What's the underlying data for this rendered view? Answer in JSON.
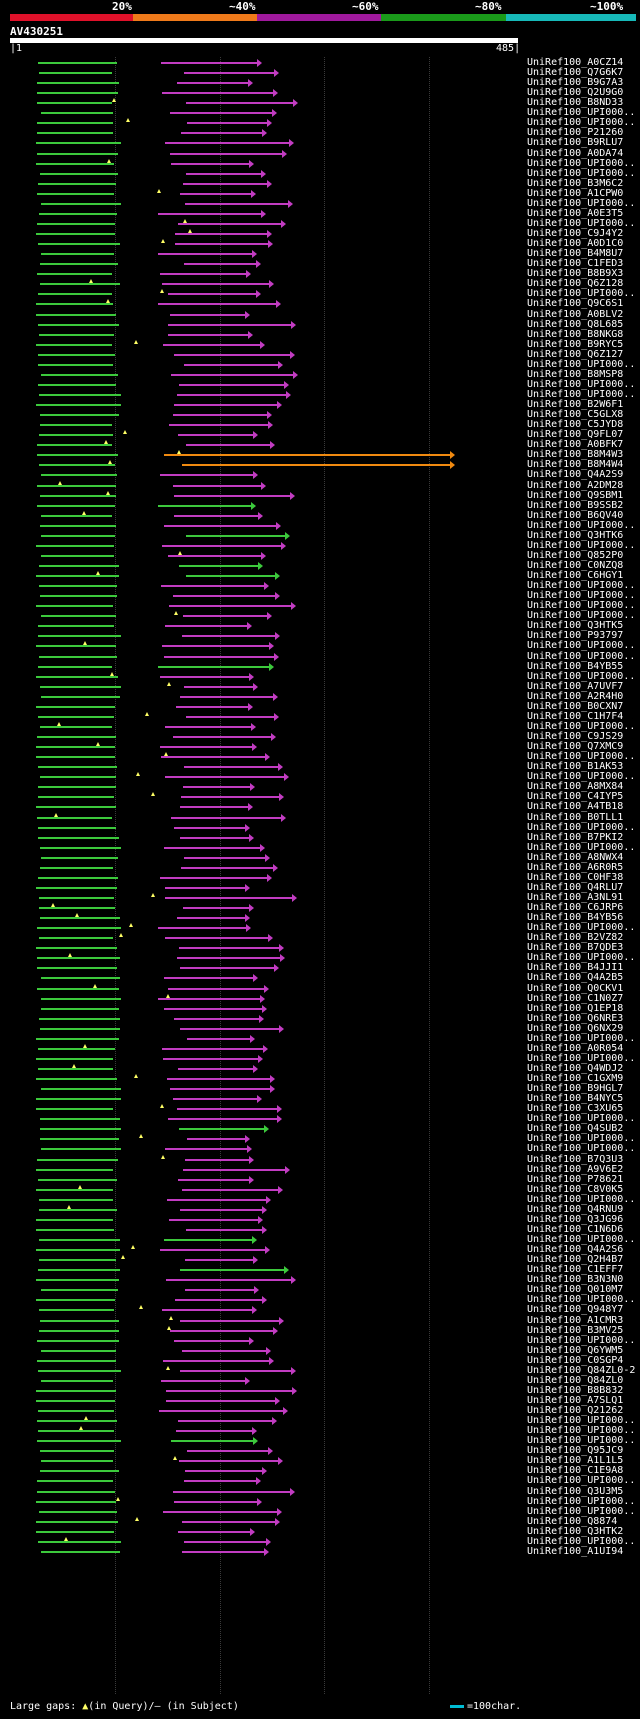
{
  "header": {
    "percent_labels": [
      "20%",
      "~40%",
      "~60%",
      "~80%",
      "~100%"
    ],
    "percent_colors": [
      "#e0112a",
      "#f07a1a",
      "#a0199d",
      "#1a9a1a",
      "#17b9b9"
    ]
  },
  "query": {
    "id": "AV430251",
    "start": "1",
    "end": "485",
    "length": 485
  },
  "colors": {
    "green": "#3cc93c",
    "magenta": "#c23cc2",
    "orange": "#f08a10",
    "gap_in_query": "#ffff66",
    "gap_in_subject": "#ffffff"
  },
  "hits": [
    {
      "label": "UniRef100_A0CZ14",
      "color": "magenta"
    },
    {
      "label": "UniRef100_Q7G6K7",
      "color": "magenta"
    },
    {
      "label": "UniRef100_B9G7A3",
      "color": "magenta"
    },
    {
      "label": "UniRef100_Q2U9G0",
      "color": "magenta"
    },
    {
      "label": "UniRef100_B8ND33",
      "color": "magenta"
    },
    {
      "label": "UniRef100_UPI000..",
      "color": "magenta"
    },
    {
      "label": "UniRef100_UPI000..",
      "color": "magenta"
    },
    {
      "label": "UniRef100_P21260",
      "color": "magenta"
    },
    {
      "label": "UniRef100_B9RLU7",
      "color": "magenta"
    },
    {
      "label": "UniRef100_A0DA74",
      "color": "magenta"
    },
    {
      "label": "UniRef100_UPI000..",
      "color": "magenta"
    },
    {
      "label": "UniRef100_UPI000..",
      "color": "magenta"
    },
    {
      "label": "UniRef100_B3M6C2",
      "color": "magenta"
    },
    {
      "label": "UniRef100_A1CPW0",
      "color": "magenta"
    },
    {
      "label": "UniRef100_UPI000..",
      "color": "magenta"
    },
    {
      "label": "UniRef100_A0E3T5",
      "color": "magenta"
    },
    {
      "label": "UniRef100_UPI000..",
      "color": "magenta"
    },
    {
      "label": "UniRef100_C9J4Y2",
      "color": "magenta"
    },
    {
      "label": "UniRef100_A0D1C0",
      "color": "magenta"
    },
    {
      "label": "UniRef100_B4M8U7",
      "color": "magenta"
    },
    {
      "label": "UniRef100_C1FED3",
      "color": "magenta"
    },
    {
      "label": "UniRef100_B8B9X3",
      "color": "magenta"
    },
    {
      "label": "UniRef100_Q6Z128",
      "color": "magenta"
    },
    {
      "label": "UniRef100_UPI000..",
      "color": "magenta"
    },
    {
      "label": "UniRef100_Q9C6S1",
      "color": "magenta"
    },
    {
      "label": "UniRef100_A0BLV2",
      "color": "magenta"
    },
    {
      "label": "UniRef100_Q8L685",
      "color": "magenta"
    },
    {
      "label": "UniRef100_B8NKG8",
      "color": "magenta"
    },
    {
      "label": "UniRef100_B9RYC5",
      "color": "magenta"
    },
    {
      "label": "UniRef100_Q6Z127",
      "color": "magenta"
    },
    {
      "label": "UniRef100_UPI000..",
      "color": "magenta"
    },
    {
      "label": "UniRef100_B8MSP8",
      "color": "magenta"
    },
    {
      "label": "UniRef100_UPI000..",
      "color": "magenta"
    },
    {
      "label": "UniRef100_UPI000..",
      "color": "magenta"
    },
    {
      "label": "UniRef100_B2W6F1",
      "color": "magenta"
    },
    {
      "label": "UniRef100_C5GLX8",
      "color": "magenta"
    },
    {
      "label": "UniRef100_C5JYD8",
      "color": "magenta"
    },
    {
      "label": "UniRef100_Q9FL07",
      "color": "magenta"
    },
    {
      "label": "UniRef100_A0BFK7",
      "color": "magenta"
    },
    {
      "label": "UniRef100_B8M4W3",
      "color": "orange"
    },
    {
      "label": "UniRef100_B8M4W4",
      "color": "orange"
    },
    {
      "label": "UniRef100_Q4A2S9",
      "color": "magenta"
    },
    {
      "label": "UniRef100_A2DM28",
      "color": "magenta"
    },
    {
      "label": "UniRef100_Q9SBM1",
      "color": "magenta"
    },
    {
      "label": "UniRef100_B9SSB2",
      "color": "green"
    },
    {
      "label": "UniRef100_B6QV40",
      "color": "magenta"
    },
    {
      "label": "UniRef100_UPI000..",
      "color": "magenta"
    },
    {
      "label": "UniRef100_Q3HTK6",
      "color": "green"
    },
    {
      "label": "UniRef100_UPI000..",
      "color": "magenta"
    },
    {
      "label": "UniRef100_Q852P0",
      "color": "magenta"
    },
    {
      "label": "UniRef100_C0NZQ8",
      "color": "green"
    },
    {
      "label": "UniRef100_C6HGY1",
      "color": "green"
    },
    {
      "label": "UniRef100_UPI000..",
      "color": "magenta"
    },
    {
      "label": "UniRef100_UPI000..",
      "color": "magenta"
    },
    {
      "label": "UniRef100_UPI000..",
      "color": "magenta"
    },
    {
      "label": "UniRef100_UPI000..",
      "color": "magenta"
    },
    {
      "label": "UniRef100_Q3HTK5",
      "color": "magenta"
    },
    {
      "label": "UniRef100_P93797",
      "color": "magenta"
    },
    {
      "label": "UniRef100_UPI000..",
      "color": "magenta"
    },
    {
      "label": "UniRef100_UPI000..",
      "color": "magenta"
    },
    {
      "label": "UniRef100_B4YB55",
      "color": "green"
    },
    {
      "label": "UniRef100_UPI000..",
      "color": "magenta"
    },
    {
      "label": "UniRef100_A7UVF7",
      "color": "magenta"
    },
    {
      "label": "UniRef100_A2R4H0",
      "color": "magenta"
    },
    {
      "label": "UniRef100_B0CXN7",
      "color": "magenta"
    },
    {
      "label": "UniRef100_C1H7F4",
      "color": "magenta"
    },
    {
      "label": "UniRef100_UPI000..",
      "color": "magenta"
    },
    {
      "label": "UniRef100_C9JS29",
      "color": "magenta"
    },
    {
      "label": "UniRef100_Q7XMC9",
      "color": "magenta"
    },
    {
      "label": "UniRef100_UPI000..",
      "color": "magenta"
    },
    {
      "label": "UniRef100_B1AK53",
      "color": "magenta"
    },
    {
      "label": "UniRef100_UPI000..",
      "color": "magenta"
    },
    {
      "label": "UniRef100_A8MX84",
      "color": "magenta"
    },
    {
      "label": "UniRef100_C4IYP5",
      "color": "magenta"
    },
    {
      "label": "UniRef100_A4TB18",
      "color": "magenta"
    },
    {
      "label": "UniRef100_B0TLL1",
      "color": "magenta"
    },
    {
      "label": "UniRef100_UPI000..",
      "color": "magenta"
    },
    {
      "label": "UniRef100_B7PKI2",
      "color": "magenta"
    },
    {
      "label": "UniRef100_UPI000..",
      "color": "magenta"
    },
    {
      "label": "UniRef100_A8NWX4",
      "color": "magenta"
    },
    {
      "label": "UniRef100_A6R0R5",
      "color": "magenta"
    },
    {
      "label": "UniRef100_C0HF38",
      "color": "magenta"
    },
    {
      "label": "UniRef100_Q4RLU7",
      "color": "magenta"
    },
    {
      "label": "UniRef100_A3NL91",
      "color": "magenta"
    },
    {
      "label": "UniRef100_C6JRP6",
      "color": "magenta"
    },
    {
      "label": "UniRef100_B4YB56",
      "color": "magenta"
    },
    {
      "label": "UniRef100_UPI000..",
      "color": "magenta"
    },
    {
      "label": "UniRef100_B2VZ82",
      "color": "magenta"
    },
    {
      "label": "UniRef100_B7QDE3",
      "color": "magenta"
    },
    {
      "label": "UniRef100_UPI000..",
      "color": "magenta"
    },
    {
      "label": "UniRef100_B4JJI1",
      "color": "magenta"
    },
    {
      "label": "UniRef100_Q4A2B5",
      "color": "magenta"
    },
    {
      "label": "UniRef100_Q0CKV1",
      "color": "magenta"
    },
    {
      "label": "UniRef100_C1N0Z7",
      "color": "magenta"
    },
    {
      "label": "UniRef100_Q1EP18",
      "color": "magenta"
    },
    {
      "label": "UniRef100_Q6NRE3",
      "color": "magenta"
    },
    {
      "label": "UniRef100_Q6NX29",
      "color": "magenta"
    },
    {
      "label": "UniRef100_UPI000..",
      "color": "magenta"
    },
    {
      "label": "UniRef100_A0R054",
      "color": "magenta"
    },
    {
      "label": "UniRef100_UPI000..",
      "color": "magenta"
    },
    {
      "label": "UniRef100_Q4WDJ2",
      "color": "magenta"
    },
    {
      "label": "UniRef100_C1GXM9",
      "color": "magenta"
    },
    {
      "label": "UniRef100_B9HGL7",
      "color": "magenta"
    },
    {
      "label": "UniRef100_B4NYC5",
      "color": "magenta"
    },
    {
      "label": "UniRef100_C3XU65",
      "color": "magenta"
    },
    {
      "label": "UniRef100_UPI000..",
      "color": "magenta"
    },
    {
      "label": "UniRef100_Q4SUB2",
      "color": "green"
    },
    {
      "label": "UniRef100_UPI000..",
      "color": "magenta"
    },
    {
      "label": "UniRef100_UPI000..",
      "color": "magenta"
    },
    {
      "label": "UniRef100_B7Q3U3",
      "color": "magenta"
    },
    {
      "label": "UniRef100_A9V6E2",
      "color": "magenta"
    },
    {
      "label": "UniRef100_P78621",
      "color": "magenta"
    },
    {
      "label": "UniRef100_C8V0K5",
      "color": "magenta"
    },
    {
      "label": "UniRef100_UPI000..",
      "color": "magenta"
    },
    {
      "label": "UniRef100_Q4RNU9",
      "color": "magenta"
    },
    {
      "label": "UniRef100_Q3JG96",
      "color": "magenta"
    },
    {
      "label": "UniRef100_C1N6D6",
      "color": "magenta"
    },
    {
      "label": "UniRef100_UPI000..",
      "color": "green"
    },
    {
      "label": "UniRef100_Q4A2S6",
      "color": "magenta"
    },
    {
      "label": "UniRef100_Q2H4B7",
      "color": "magenta"
    },
    {
      "label": "UniRef100_C1EFF7",
      "color": "green"
    },
    {
      "label": "UniRef100_B3N3N0",
      "color": "magenta"
    },
    {
      "label": "UniRef100_Q010M7",
      "color": "magenta"
    },
    {
      "label": "UniRef100_UPI000..",
      "color": "magenta"
    },
    {
      "label": "UniRef100_Q948Y7",
      "color": "magenta"
    },
    {
      "label": "UniRef100_A1CMR3",
      "color": "magenta"
    },
    {
      "label": "UniRef100_B3MV25",
      "color": "magenta"
    },
    {
      "label": "UniRef100_UPI000..",
      "color": "magenta"
    },
    {
      "label": "UniRef100_Q6YWM5",
      "color": "magenta"
    },
    {
      "label": "UniRef100_C0SGP4",
      "color": "magenta"
    },
    {
      "label": "UniRef100_Q84ZL0-2",
      "color": "magenta"
    },
    {
      "label": "UniRef100_Q84ZL0",
      "color": "magenta"
    },
    {
      "label": "UniRef100_B8B832",
      "color": "magenta"
    },
    {
      "label": "UniRef100_A7SLQ1",
      "color": "magenta"
    },
    {
      "label": "UniRef100_Q21262",
      "color": "magenta"
    },
    {
      "label": "UniRef100_UPI000..",
      "color": "magenta"
    },
    {
      "label": "UniRef100_UPI000..",
      "color": "magenta"
    },
    {
      "label": "UniRef100_UPI000..",
      "color": "green"
    },
    {
      "label": "UniRef100_Q95JC9",
      "color": "magenta"
    },
    {
      "label": "UniRef100_A1L1L5",
      "color": "magenta"
    },
    {
      "label": "UniRef100_C1E9A8",
      "color": "magenta"
    },
    {
      "label": "UniRef100_UPI000..",
      "color": "magenta"
    },
    {
      "label": "UniRef100_Q3U3M5",
      "color": "magenta"
    },
    {
      "label": "UniRef100_UPI000..",
      "color": "magenta"
    },
    {
      "label": "UniRef100_UPI000..",
      "color": "magenta"
    },
    {
      "label": "UniRef100_Q8874",
      "color": "magenta"
    },
    {
      "label": "UniRef100_Q3HTK2",
      "color": "magenta"
    },
    {
      "label": "UniRef100_UPI000..",
      "color": "magenta"
    },
    {
      "label": "UniRef100_A1UI94",
      "color": "magenta"
    }
  ],
  "footer": {
    "legend_prefix": "Large gaps:",
    "legend_query": "(in Query)/",
    "legend_subject": "(in Subject)",
    "scale_text": "=100char."
  }
}
